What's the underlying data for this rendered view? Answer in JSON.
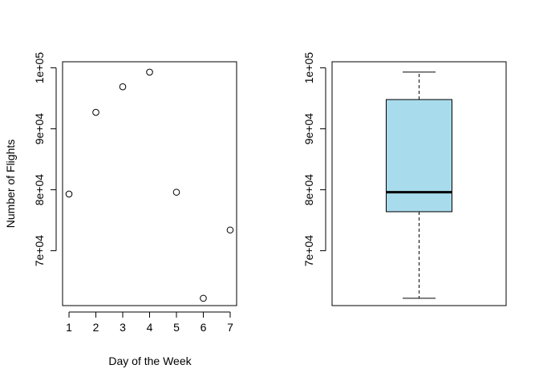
{
  "chart_data": [
    {
      "type": "scatter",
      "xlabel": "Day of the Week",
      "ylabel": "Number of Flights",
      "x": [
        1,
        2,
        3,
        4,
        5,
        6,
        7
      ],
      "y": [
        79300,
        92700,
        96900,
        99300,
        79600,
        62200,
        73400
      ],
      "xlim": [
        0.76,
        7.24
      ],
      "ylim": [
        61000,
        101000
      ],
      "x_ticks": [
        1,
        2,
        3,
        4,
        5,
        6,
        7
      ],
      "y_ticks": [
        70000,
        80000,
        90000,
        100000
      ],
      "y_tick_labels": [
        "7e+04",
        "8e+04",
        "9e+04",
        "1e+05"
      ],
      "marker": "open-circle",
      "grid": false
    },
    {
      "type": "box",
      "ylim": [
        61000,
        101000
      ],
      "y_ticks": [
        70000,
        80000,
        90000,
        100000
      ],
      "y_tick_labels": [
        "7e+04",
        "8e+04",
        "9e+04",
        "1e+05"
      ],
      "whisker_low": 62200,
      "q1": 76400,
      "median": 79600,
      "q3": 94800,
      "whisker_high": 99300,
      "box_color": "#a8dbec",
      "grid": false
    }
  ]
}
